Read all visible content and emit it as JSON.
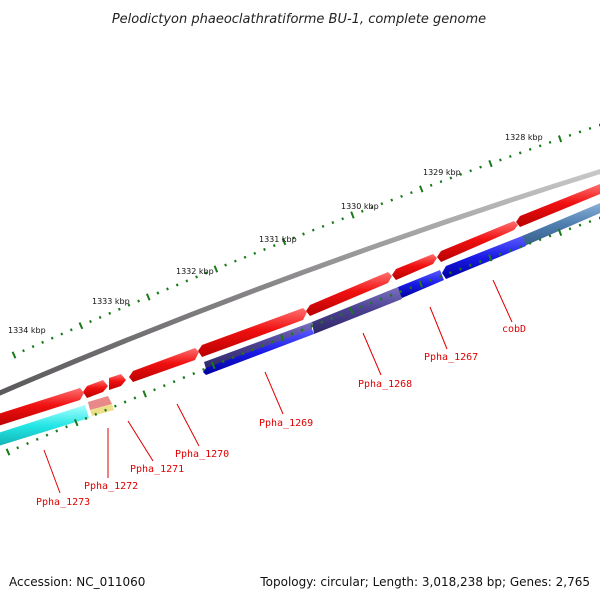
{
  "title": "Pelodictyon phaeoclathratiforme BU-1, complete genome",
  "footer": {
    "accession": "Accession: NC_011060",
    "topology": "Topology: circular; Length: 3,018,238 bp; Genes: 2,765"
  },
  "kbp_labels": [
    "1328 kbp",
    "1329 kbp",
    "1330 kbp",
    "1331 kbp",
    "1332 kbp",
    "1333 kbp",
    "1334 kbp"
  ],
  "gene_labels": [
    "cobD",
    "Ppha_1267",
    "Ppha_1268",
    "Ppha_1269",
    "Ppha_1270",
    "Ppha_1271",
    "Ppha_1272",
    "Ppha_1273"
  ],
  "colors": {
    "backbone": "#8a888a",
    "forward_gene": "#ee1111",
    "reverse_blue": "#1a1ae0",
    "reverse_purple": "#4a3f8f",
    "reverse_steel": "#4f7fb0",
    "cyan": "#22e5e5",
    "pink": "#e88888",
    "pale_yellow": "#eee08a",
    "tick_green": "#1a7a1a",
    "label_red": "#e00000"
  }
}
